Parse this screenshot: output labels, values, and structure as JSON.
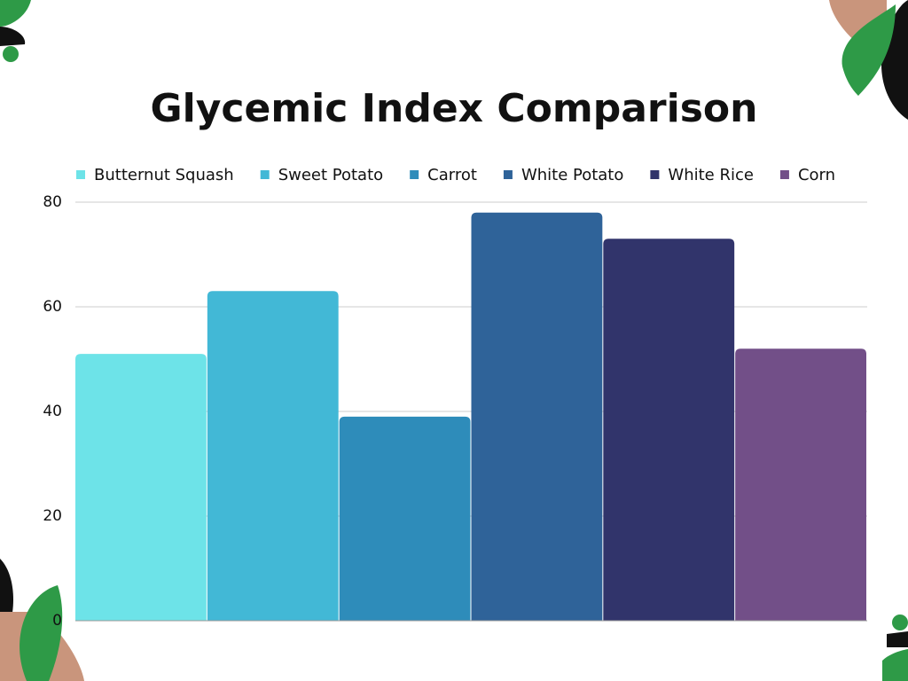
{
  "chart_data": {
    "type": "bar",
    "title": "Glycemic Index Comparison",
    "categories": [
      null
    ],
    "series": [
      {
        "name": "Butternut Squash",
        "color": "#6de3e8",
        "values": [
          51
        ]
      },
      {
        "name": "Sweet Potato",
        "color": "#42b8d6",
        "values": [
          63
        ]
      },
      {
        "name": "Carrot",
        "color": "#2e8cba",
        "values": [
          39
        ]
      },
      {
        "name": "White Potato",
        "color": "#2f6399",
        "values": [
          78
        ]
      },
      {
        "name": "White Rice",
        "color": "#31346b",
        "values": [
          73
        ]
      },
      {
        "name": "Corn",
        "color": "#724f88",
        "values": [
          52
        ]
      }
    ],
    "ylim": [
      0,
      80
    ],
    "yticks": [
      0,
      20,
      40,
      60,
      80
    ],
    "grid": true,
    "legend": "top"
  }
}
